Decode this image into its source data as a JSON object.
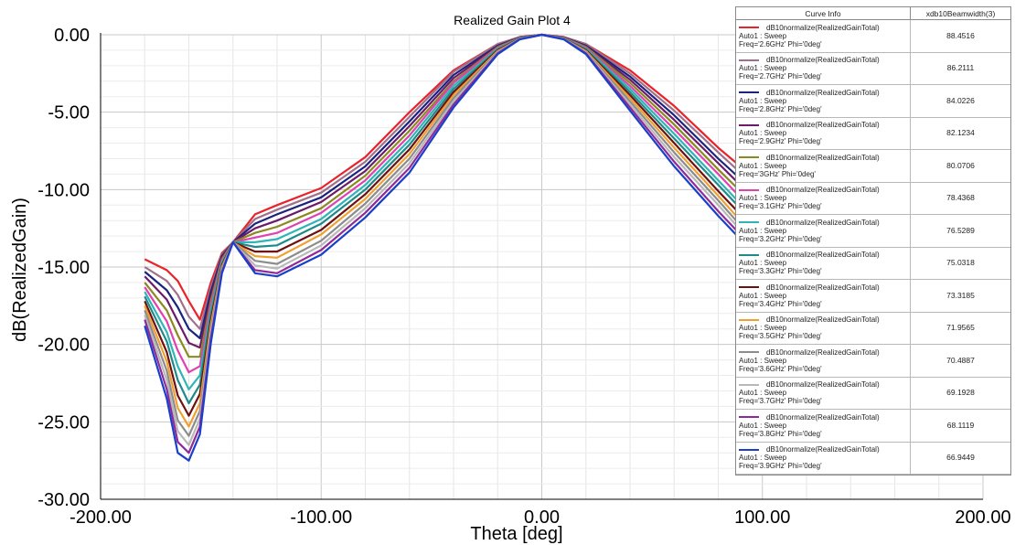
{
  "chart_data": {
    "type": "line",
    "title": "Realized Gain Plot 4",
    "xlabel": "Theta [deg]",
    "ylabel": "dB(RealizedGain)",
    "xlim": [
      -200,
      200
    ],
    "ylim": [
      -30,
      0
    ],
    "x_ticks": [
      "-200.00",
      "-100.00",
      "0.00",
      "100.00",
      "200.00"
    ],
    "y_ticks": [
      "0.00",
      "-5.00",
      "-10.00",
      "-15.00",
      "-20.00",
      "-25.00",
      "-30.00"
    ],
    "grid": true,
    "legend_position": "top-right",
    "legend_header": {
      "curve_info": "Curve Info",
      "beamwidth": "xdb10Beamwidth(3)"
    },
    "series": [
      {
        "line1": "dB10normalize(RealizedGainTotal)",
        "line2": "Auto1 : Sweep",
        "line3": "Freq='2.6GHz' Phi='0deg'",
        "beamwidth": "88.4516",
        "color": "#e8232a",
        "x": [
          -180,
          -170,
          -165,
          -160,
          -155,
          -150,
          -145,
          -140,
          -130,
          -120,
          -100,
          -80,
          -60,
          -40,
          -20,
          -10,
          0,
          10,
          20,
          40,
          60,
          80,
          90
        ],
        "y": [
          -14.5,
          -15.2,
          -15.9,
          -17.2,
          -18.4,
          -16.0,
          -14.1,
          -13.4,
          -11.6,
          -11.0,
          -9.9,
          -7.9,
          -5.0,
          -2.3,
          -0.6,
          -0.15,
          0,
          -0.15,
          -0.6,
          -2.3,
          -4.6,
          -7.3,
          -8.5
        ]
      },
      {
        "line1": "dB10normalize(RealizedGainTotal)",
        "line2": "Auto1 : Sweep",
        "line3": "Freq='2.7GHz' Phi='0deg'",
        "beamwidth": "86.2111",
        "color": "#a0708a",
        "x": [
          -180,
          -170,
          -165,
          -160,
          -155,
          -150,
          -145,
          -140,
          -130,
          -120,
          -100,
          -80,
          -60,
          -40,
          -20,
          -10,
          0,
          10,
          20,
          40,
          60,
          80,
          90
        ],
        "y": [
          -15.0,
          -15.9,
          -16.8,
          -18.2,
          -19.0,
          -16.3,
          -14.2,
          -13.4,
          -11.9,
          -11.3,
          -10.2,
          -8.2,
          -5.3,
          -2.4,
          -0.6,
          -0.15,
          0,
          -0.16,
          -0.6,
          -2.5,
          -4.9,
          -7.6,
          -8.9
        ]
      },
      {
        "line1": "dB10normalize(RealizedGainTotal)",
        "line2": "Auto1 : Sweep",
        "line3": "Freq='2.8GHz' Phi='0deg'",
        "beamwidth": "84.0226",
        "color": "#1a237e",
        "x": [
          -180,
          -170,
          -165,
          -160,
          -155,
          -150,
          -145,
          -140,
          -130,
          -120,
          -100,
          -80,
          -60,
          -40,
          -20,
          -10,
          0,
          10,
          20,
          40,
          60,
          80,
          90
        ],
        "y": [
          -15.3,
          -16.5,
          -17.6,
          -19.0,
          -19.6,
          -16.6,
          -14.3,
          -13.4,
          -12.2,
          -11.6,
          -10.5,
          -8.5,
          -5.6,
          -2.6,
          -0.7,
          -0.17,
          0,
          -0.17,
          -0.7,
          -2.7,
          -5.2,
          -8.0,
          -9.3
        ]
      },
      {
        "line1": "dB10normalize(RealizedGainTotal)",
        "line2": "Auto1 : Sweep",
        "line3": "Freq='2.9GHz' Phi='0deg'",
        "beamwidth": "82.1234",
        "color": "#6a1b6a",
        "x": [
          -180,
          -170,
          -165,
          -160,
          -155,
          -150,
          -145,
          -140,
          -130,
          -120,
          -100,
          -80,
          -60,
          -40,
          -20,
          -10,
          0,
          10,
          20,
          40,
          60,
          80,
          90
        ],
        "y": [
          -15.6,
          -17.1,
          -18.5,
          -19.9,
          -20.2,
          -16.9,
          -14.4,
          -13.4,
          -12.5,
          -12.0,
          -10.8,
          -8.8,
          -5.9,
          -2.8,
          -0.75,
          -0.18,
          0,
          -0.18,
          -0.75,
          -2.9,
          -5.5,
          -8.3,
          -9.7
        ]
      },
      {
        "line1": "dB10normalize(RealizedGainTotal)",
        "line2": "Auto1 : Sweep",
        "line3": "Freq='3GHz' Phi='0deg'",
        "beamwidth": "80.0706",
        "color": "#8a8a1e",
        "x": [
          -180,
          -170,
          -165,
          -160,
          -155,
          -150,
          -145,
          -140,
          -130,
          -120,
          -100,
          -80,
          -60,
          -40,
          -20,
          -10,
          0,
          10,
          20,
          40,
          60,
          80,
          90
        ],
        "y": [
          -16.0,
          -17.8,
          -19.4,
          -20.8,
          -20.8,
          -17.2,
          -14.5,
          -13.4,
          -12.8,
          -12.4,
          -11.2,
          -9.1,
          -6.2,
          -3.0,
          -0.8,
          -0.2,
          0,
          -0.2,
          -0.8,
          -3.1,
          -5.8,
          -8.7,
          -10.1
        ]
      },
      {
        "line1": "dB10normalize(RealizedGainTotal)",
        "line2": "Auto1 : Sweep",
        "line3": "Freq='3.1GHz' Phi='0deg'",
        "beamwidth": "78.4368",
        "color": "#e040b0",
        "x": [
          -180,
          -170,
          -165,
          -160,
          -155,
          -150,
          -145,
          -140,
          -130,
          -120,
          -100,
          -80,
          -60,
          -40,
          -20,
          -10,
          0,
          10,
          20,
          40,
          60,
          80,
          90
        ],
        "y": [
          -16.3,
          -18.5,
          -20.4,
          -21.8,
          -21.4,
          -17.5,
          -14.6,
          -13.4,
          -13.1,
          -12.8,
          -11.5,
          -9.4,
          -6.5,
          -3.1,
          -0.85,
          -0.21,
          0,
          -0.21,
          -0.85,
          -3.3,
          -6.1,
          -9.0,
          -10.5
        ]
      },
      {
        "line1": "dB10normalize(RealizedGainTotal)",
        "line2": "Auto1 : Sweep",
        "line3": "Freq='3.2GHz' Phi='0deg'",
        "beamwidth": "76.5289",
        "color": "#2fb5b5",
        "x": [
          -180,
          -170,
          -165,
          -160,
          -155,
          -150,
          -145,
          -140,
          -130,
          -120,
          -100,
          -80,
          -60,
          -40,
          -20,
          -10,
          0,
          10,
          20,
          40,
          60,
          80,
          90
        ],
        "y": [
          -16.6,
          -19.2,
          -21.4,
          -22.9,
          -22.0,
          -17.8,
          -14.7,
          -13.4,
          -13.4,
          -13.2,
          -11.9,
          -9.7,
          -6.8,
          -3.3,
          -0.9,
          -0.22,
          0,
          -0.22,
          -0.9,
          -3.5,
          -6.4,
          -9.4,
          -10.9
        ]
      },
      {
        "line1": "dB10normalize(RealizedGainTotal)",
        "line2": "Auto1 : Sweep",
        "line3": "Freq='3.3GHz' Phi='0deg'",
        "beamwidth": "75.0318",
        "color": "#1f8a8a",
        "x": [
          -180,
          -170,
          -165,
          -160,
          -155,
          -150,
          -145,
          -140,
          -130,
          -120,
          -100,
          -80,
          -60,
          -40,
          -20,
          -10,
          0,
          10,
          20,
          40,
          60,
          80,
          90
        ],
        "y": [
          -16.9,
          -19.8,
          -22.3,
          -23.8,
          -22.6,
          -18.1,
          -14.8,
          -13.4,
          -13.7,
          -13.6,
          -12.2,
          -10.0,
          -7.1,
          -3.5,
          -0.95,
          -0.24,
          0,
          -0.24,
          -0.95,
          -3.7,
          -6.7,
          -9.7,
          -11.2
        ]
      },
      {
        "line1": "dB10normalize(RealizedGainTotal)",
        "line2": "Auto1 : Sweep",
        "line3": "Freq='3.4GHz' Phi='0deg'",
        "beamwidth": "73.3185",
        "color": "#6d1010",
        "x": [
          -180,
          -170,
          -165,
          -160,
          -155,
          -150,
          -145,
          -140,
          -130,
          -120,
          -100,
          -80,
          -60,
          -40,
          -20,
          -10,
          0,
          10,
          20,
          40,
          60,
          80,
          90
        ],
        "y": [
          -17.2,
          -20.5,
          -23.3,
          -24.6,
          -23.2,
          -18.4,
          -14.9,
          -13.4,
          -14.0,
          -14.0,
          -12.6,
          -10.3,
          -7.4,
          -3.7,
          -1.0,
          -0.25,
          0,
          -0.25,
          -1.0,
          -3.9,
          -7.0,
          -10.1,
          -11.6
        ]
      },
      {
        "line1": "dB10normalize(RealizedGainTotal)",
        "line2": "Auto1 : Sweep",
        "line3": "Freq='3.5GHz' Phi='0deg'",
        "beamwidth": "71.9565",
        "color": "#f0a030",
        "x": [
          -180,
          -170,
          -165,
          -160,
          -155,
          -150,
          -145,
          -140,
          -130,
          -120,
          -100,
          -80,
          -60,
          -40,
          -20,
          -10,
          0,
          10,
          20,
          40,
          60,
          80,
          90
        ],
        "y": [
          -17.5,
          -21.1,
          -24.1,
          -25.3,
          -23.8,
          -18.7,
          -15.0,
          -13.4,
          -14.3,
          -14.4,
          -12.9,
          -10.6,
          -7.7,
          -3.9,
          -1.05,
          -0.26,
          0,
          -0.26,
          -1.05,
          -4.1,
          -7.3,
          -10.4,
          -12.0
        ]
      },
      {
        "line1": "dB10normalize(RealizedGainTotal)",
        "line2": "Auto1 : Sweep",
        "line3": "Freq='3.6GHz' Phi='0deg'",
        "beamwidth": "70.4887",
        "color": "#8c8c8c",
        "x": [
          -180,
          -170,
          -165,
          -160,
          -155,
          -150,
          -145,
          -140,
          -130,
          -120,
          -100,
          -80,
          -60,
          -40,
          -20,
          -10,
          0,
          10,
          20,
          40,
          60,
          80,
          90
        ],
        "y": [
          -17.8,
          -21.7,
          -24.9,
          -25.9,
          -24.3,
          -19.0,
          -15.1,
          -13.4,
          -14.6,
          -14.8,
          -13.3,
          -10.9,
          -8.0,
          -4.1,
          -1.1,
          -0.27,
          0,
          -0.27,
          -1.1,
          -4.3,
          -7.6,
          -10.7,
          -12.3
        ]
      },
      {
        "line1": "dB10normalize(RealizedGainTotal)",
        "line2": "Auto1 : Sweep",
        "line3": "Freq='3.7GHz' Phi='0deg'",
        "beamwidth": "69.1928",
        "color": "#b8b8b8",
        "x": [
          -180,
          -170,
          -165,
          -160,
          -155,
          -150,
          -145,
          -140,
          -130,
          -120,
          -100,
          -80,
          -60,
          -40,
          -20,
          -10,
          0,
          10,
          20,
          40,
          60,
          80,
          90
        ],
        "y": [
          -18.1,
          -22.3,
          -25.6,
          -26.5,
          -24.8,
          -19.3,
          -15.2,
          -13.4,
          -14.9,
          -15.1,
          -13.6,
          -11.2,
          -8.3,
          -4.3,
          -1.15,
          -0.28,
          0,
          -0.28,
          -1.15,
          -4.5,
          -7.9,
          -11.0,
          -12.6
        ]
      },
      {
        "line1": "dB10normalize(RealizedGainTotal)",
        "line2": "Auto1 : Sweep",
        "line3": "Freq='3.8GHz' Phi='0deg'",
        "beamwidth": "68.1119",
        "color": "#8e2a9a",
        "x": [
          -180,
          -170,
          -165,
          -160,
          -155,
          -150,
          -145,
          -140,
          -130,
          -120,
          -100,
          -80,
          -60,
          -40,
          -20,
          -10,
          0,
          10,
          20,
          40,
          60,
          80,
          90
        ],
        "y": [
          -18.4,
          -22.9,
          -26.3,
          -27.0,
          -25.3,
          -19.6,
          -15.3,
          -13.4,
          -15.2,
          -15.4,
          -13.9,
          -11.5,
          -8.6,
          -4.5,
          -1.2,
          -0.29,
          0,
          -0.29,
          -1.2,
          -4.7,
          -8.2,
          -11.4,
          -12.9
        ]
      },
      {
        "line1": "dB10normalize(RealizedGainTotal)",
        "line2": "Auto1 : Sweep",
        "line3": "Freq='3.9GHz' Phi='0deg'",
        "beamwidth": "66.9449",
        "color": "#1a3fc8",
        "x": [
          -180,
          -170,
          -165,
          -160,
          -155,
          -150,
          -145,
          -140,
          -130,
          -120,
          -100,
          -80,
          -60,
          -40,
          -20,
          -10,
          0,
          10,
          20,
          40,
          60,
          80,
          90
        ],
        "y": [
          -18.8,
          -23.5,
          -27.0,
          -27.5,
          -25.8,
          -19.9,
          -15.4,
          -13.4,
          -15.4,
          -15.6,
          -14.2,
          -11.8,
          -8.9,
          -4.7,
          -1.25,
          -0.3,
          0,
          -0.3,
          -1.25,
          -4.9,
          -8.5,
          -11.7,
          -13.2
        ]
      }
    ]
  }
}
